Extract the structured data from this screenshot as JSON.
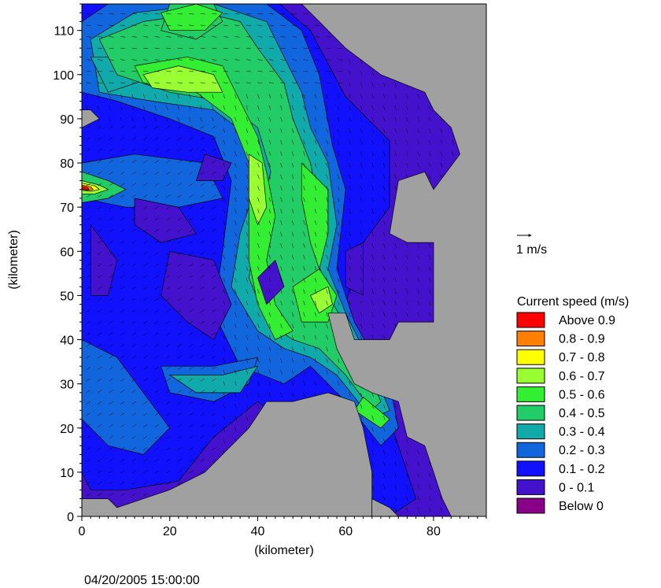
{
  "chart_data": {
    "type": "heatmap",
    "subtype": "contour-map-with-vector-arrows",
    "title": "",
    "xlabel": "(kilometer)",
    "ylabel": "(kilometer)",
    "xlim": [
      0,
      92
    ],
    "ylim": [
      0,
      116
    ],
    "x_ticks": [
      0,
      20,
      40,
      60,
      80
    ],
    "y_ticks": [
      0,
      10,
      20,
      30,
      40,
      50,
      60,
      70,
      80,
      90,
      100,
      110
    ],
    "grid": false,
    "timestamp": "04/20/2005 15:00:00",
    "vector_scale_label": "1 m/s",
    "legend": {
      "title": "Current speed (m/s)",
      "placement": "right",
      "entries": [
        {
          "label": "Above 0.9",
          "color": "#ff0000"
        },
        {
          "label": "0.8 - 0.9",
          "color": "#ff8000"
        },
        {
          "label": "0.7 - 0.8",
          "color": "#ffff00"
        },
        {
          "label": "0.6 - 0.7",
          "color": "#99ff33"
        },
        {
          "label": "0.5 - 0.6",
          "color": "#33ee33"
        },
        {
          "label": "0.4 - 0.5",
          "color": "#22cc66"
        },
        {
          "label": "0.3 - 0.4",
          "color": "#11aaaa"
        },
        {
          "label": "0.2 - 0.3",
          "color": "#1166dd"
        },
        {
          "label": "0.1 - 0.2",
          "color": "#1111ff"
        },
        {
          "label": "0 - 0.1",
          "color": "#4411cc"
        },
        {
          "label": "Below    0",
          "color": "#880088"
        }
      ]
    },
    "land_color": "#a0a0a0",
    "features": [
      {
        "name": "main-current-band",
        "speed_class": "0.4 - 0.5",
        "path_km": [
          [
            3,
            110
          ],
          [
            10,
            100
          ],
          [
            25,
            98
          ],
          [
            38,
            90
          ],
          [
            40,
            75
          ],
          [
            37,
            60
          ],
          [
            38,
            45
          ],
          [
            42,
            30
          ]
        ]
      },
      {
        "name": "upper-jet",
        "speed_class": "0.6 - 0.7",
        "center_km": [
          20,
          98
        ]
      },
      {
        "name": "top-jet",
        "speed_class": "0.5 - 0.6",
        "center_km": [
          24,
          112
        ]
      },
      {
        "name": "east-branch",
        "speed_class": "0.5 - 0.6",
        "path_km": [
          [
            48,
            95
          ],
          [
            55,
            72
          ],
          [
            54,
            50
          ],
          [
            58,
            40
          ],
          [
            66,
            26
          ],
          [
            70,
            20
          ]
        ]
      },
      {
        "name": "west-hotspot",
        "speed_class": "Above 0.9",
        "center_km": [
          1,
          74
        ]
      }
    ]
  }
}
